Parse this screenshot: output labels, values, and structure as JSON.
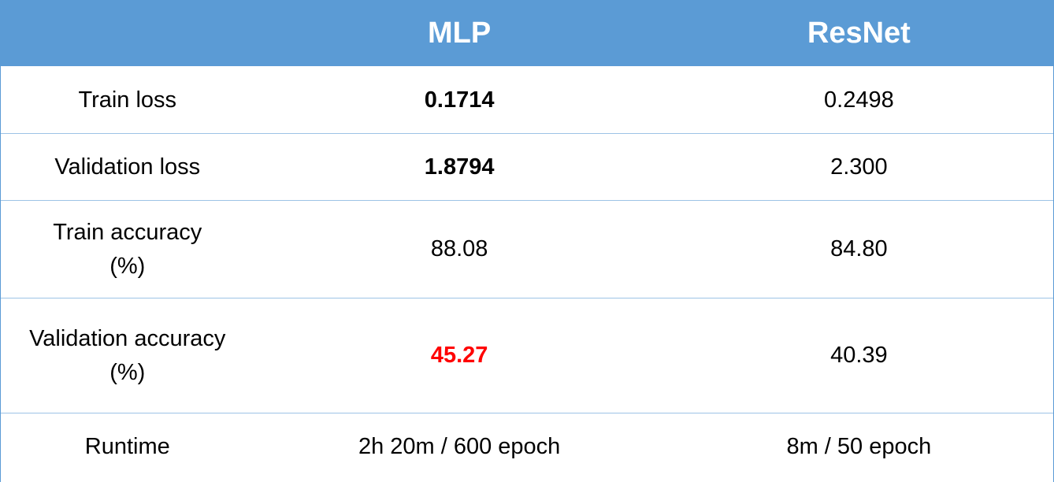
{
  "colors": {
    "header_bg": "#5b9bd5",
    "header_text": "#ffffff",
    "highlight": "#ff0000",
    "row_divider": "#9dc3e6"
  },
  "table": {
    "columns": [
      "",
      "MLP",
      "ResNet"
    ],
    "rows": [
      {
        "metric_lines": [
          "Train loss"
        ],
        "mlp": "0.1714",
        "mlp_style": "bold",
        "resnet": "0.2498"
      },
      {
        "metric_lines": [
          "Validation loss"
        ],
        "mlp": "1.8794",
        "mlp_style": "bold",
        "resnet": "2.300"
      },
      {
        "metric_lines": [
          "Train accuracy",
          "(%)"
        ],
        "mlp": "88.08",
        "mlp_style": "normal",
        "resnet": "84.80"
      },
      {
        "metric_lines": [
          "Validation accuracy",
          "(%)"
        ],
        "mlp": "45.27",
        "mlp_style": "bold-red",
        "resnet": "40.39"
      },
      {
        "metric_lines": [
          "Runtime"
        ],
        "mlp": "2h 20m / 600 epoch",
        "mlp_style": "normal",
        "resnet": "8m / 50 epoch"
      }
    ]
  }
}
